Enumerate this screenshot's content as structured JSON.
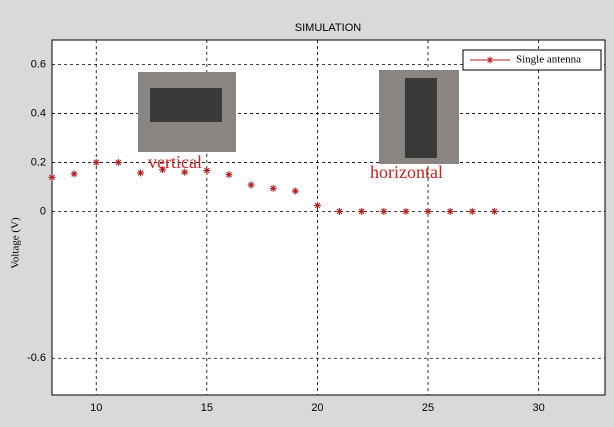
{
  "chart_data": {
    "type": "scatter",
    "title": "SIMULATION",
    "ylabel": "Voltage (V)",
    "x": [
      8,
      9,
      10,
      11,
      12,
      13,
      14,
      15,
      16,
      17,
      18,
      19,
      20,
      21,
      22,
      23,
      24,
      25,
      26,
      27,
      28
    ],
    "series": [
      {
        "name": "Single antenna",
        "color": "#b22222",
        "values": [
          0.139,
          0.153,
          0.2,
          0.2,
          0.157,
          0.17,
          0.16,
          0.167,
          0.15,
          0.108,
          0.094,
          0.083,
          0.024,
          0,
          0,
          0,
          0,
          0,
          0,
          0,
          0
        ]
      }
    ],
    "annotations": [
      "vertical",
      "horizontal"
    ],
    "xlim": [
      8,
      33
    ],
    "xticks": [
      10,
      15,
      20,
      25,
      30
    ],
    "ylim": [
      -0.75,
      0.7
    ],
    "yticks": [
      -0.6,
      0,
      0.2,
      0.4,
      0.6
    ],
    "grid": true,
    "legend": "top-right"
  }
}
